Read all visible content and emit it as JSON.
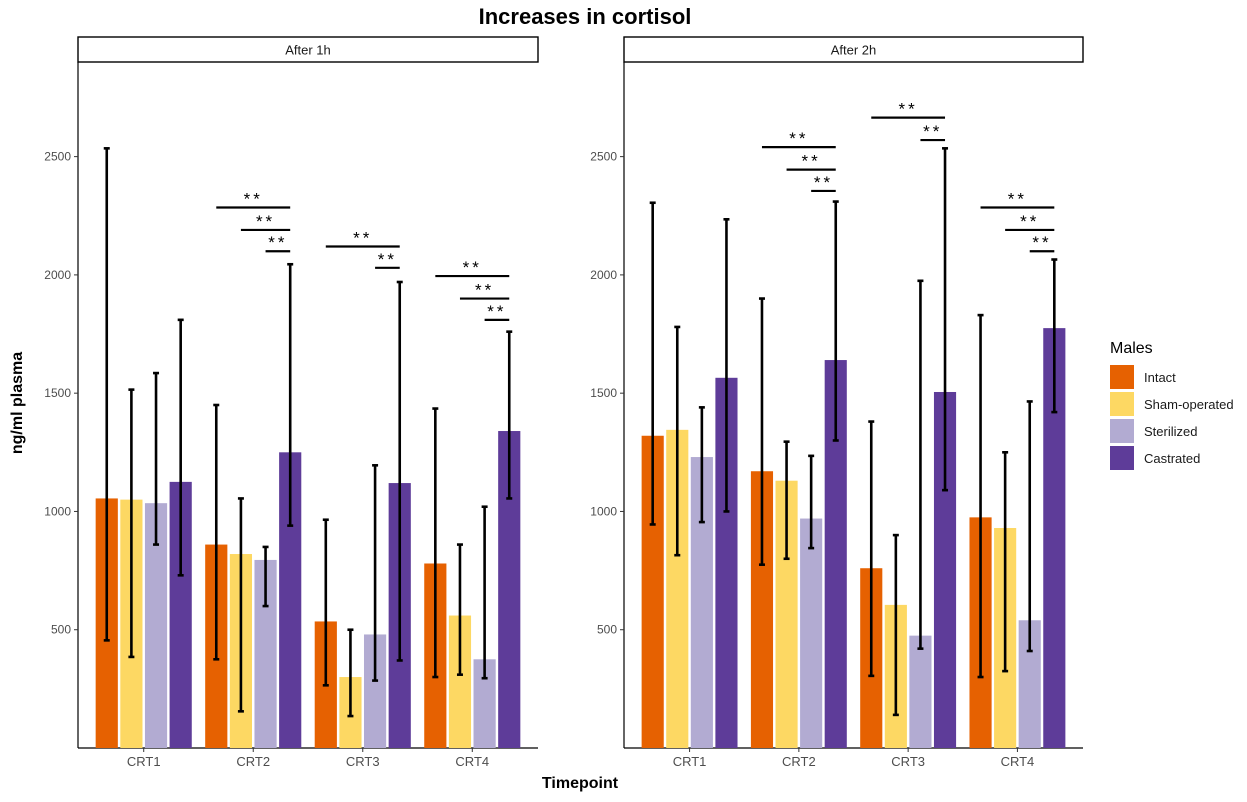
{
  "chart_data": {
    "type": "bar",
    "title": "Increases in cortisol",
    "xlabel": "Timepoint",
    "ylabel": "ng/ml plasma",
    "categories": [
      "CRT1",
      "CRT2",
      "CRT3",
      "CRT4"
    ],
    "ylim": [
      0,
      2900
    ],
    "yticks": [
      500,
      1000,
      1500,
      2000,
      2500
    ],
    "grid": false,
    "legend": {
      "title": "Males",
      "position": "right",
      "entries": [
        "Intact",
        "Sham-operated",
        "Sterilized",
        "Castrated"
      ]
    },
    "series_colors": [
      "#e66101",
      "#fdd863",
      "#b2abd2",
      "#5e3c99"
    ],
    "panels": [
      {
        "title": "After 1h",
        "series": [
          {
            "name": "Intact",
            "values": [
              1055,
              860,
              535,
              780
            ],
            "error_low": [
              455,
              375,
              265,
              300
            ],
            "error_high": [
              2535,
              1450,
              965,
              1435
            ]
          },
          {
            "name": "Sham-operated",
            "values": [
              1050,
              820,
              300,
              560
            ],
            "error_low": [
              385,
              155,
              135,
              310
            ],
            "error_high": [
              1515,
              1055,
              500,
              860
            ]
          },
          {
            "name": "Sterilized",
            "values": [
              1035,
              795,
              480,
              375
            ],
            "error_low": [
              860,
              600,
              285,
              295
            ],
            "error_high": [
              1585,
              850,
              1195,
              1020
            ]
          },
          {
            "name": "Castrated",
            "values": [
              1125,
              1250,
              1120,
              1340
            ],
            "error_low": [
              730,
              940,
              370,
              1055
            ],
            "error_high": [
              1810,
              2045,
              1970,
              1760
            ]
          }
        ],
        "significance": [
          {
            "category": "CRT2",
            "from": 0,
            "to": 3,
            "y": 2285,
            "label": "**"
          },
          {
            "category": "CRT2",
            "from": 1,
            "to": 3,
            "y": 2190,
            "label": "**"
          },
          {
            "category": "CRT2",
            "from": 2,
            "to": 3,
            "y": 2100,
            "label": "**"
          },
          {
            "category": "CRT3",
            "from": 0,
            "to": 3,
            "y": 2120,
            "label": "**"
          },
          {
            "category": "CRT3",
            "from": 2,
            "to": 3,
            "y": 2030,
            "label": "**"
          },
          {
            "category": "CRT4",
            "from": 0,
            "to": 3,
            "y": 1995,
            "label": "**"
          },
          {
            "category": "CRT4",
            "from": 1,
            "to": 3,
            "y": 1900,
            "label": "**"
          },
          {
            "category": "CRT4",
            "from": 2,
            "to": 3,
            "y": 1810,
            "label": "**"
          }
        ]
      },
      {
        "title": "After 2h",
        "series": [
          {
            "name": "Intact",
            "values": [
              1320,
              1170,
              760,
              975
            ],
            "error_low": [
              945,
              775,
              305,
              300
            ],
            "error_high": [
              2305,
              1900,
              1380,
              1830
            ]
          },
          {
            "name": "Sham-operated",
            "values": [
              1345,
              1130,
              605,
              930
            ],
            "error_low": [
              815,
              800,
              140,
              325
            ],
            "error_high": [
              1780,
              1295,
              900,
              1250
            ]
          },
          {
            "name": "Sterilized",
            "values": [
              1230,
              970,
              475,
              540
            ],
            "error_low": [
              955,
              845,
              420,
              410
            ],
            "error_high": [
              1440,
              1235,
              1975,
              1465
            ]
          },
          {
            "name": "Castrated",
            "values": [
              1565,
              1640,
              1505,
              1775
            ],
            "error_low": [
              1000,
              1300,
              1090,
              1420
            ],
            "error_high": [
              2235,
              2310,
              2535,
              2065
            ]
          }
        ],
        "significance": [
          {
            "category": "CRT2",
            "from": 0,
            "to": 3,
            "y": 2540,
            "label": "**"
          },
          {
            "category": "CRT2",
            "from": 1,
            "to": 3,
            "y": 2445,
            "label": "**"
          },
          {
            "category": "CRT2",
            "from": 2,
            "to": 3,
            "y": 2355,
            "label": "**"
          },
          {
            "category": "CRT3",
            "from": 0,
            "to": 3,
            "y": 2665,
            "label": "**"
          },
          {
            "category": "CRT3",
            "from": 2,
            "to": 3,
            "y": 2570,
            "label": "**"
          },
          {
            "category": "CRT4",
            "from": 0,
            "to": 3,
            "y": 2285,
            "label": "**"
          },
          {
            "category": "CRT4",
            "from": 1,
            "to": 3,
            "y": 2190,
            "label": "**"
          },
          {
            "category": "CRT4",
            "from": 2,
            "to": 3,
            "y": 2100,
            "label": "**"
          }
        ]
      }
    ]
  }
}
